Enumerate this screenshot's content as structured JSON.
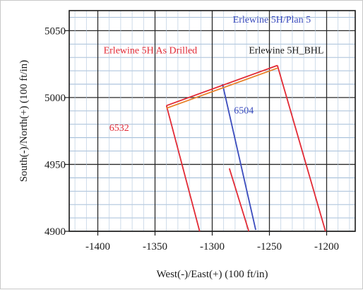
{
  "chart_data": {
    "type": "line",
    "title": "",
    "xlabel": "West(-)/East(+) (100 ft/in)",
    "ylabel": "South(-)/North(+) (100 ft/in)",
    "xlim": [
      -1425,
      -1175
    ],
    "ylim": [
      4900,
      5065
    ],
    "x_ticks": [
      -1400,
      -1350,
      -1300,
      -1250,
      -1200
    ],
    "x_tick_labels": [
      "-1400",
      "-1350",
      "-1300",
      "-1250",
      "-1200"
    ],
    "y_ticks": [
      4900,
      4950,
      5000,
      5050
    ],
    "y_tick_labels": [
      "4900",
      "4950",
      "5000",
      "5050"
    ],
    "grid": true,
    "legend": "none",
    "series": [
      {
        "name": "Erlewine 5H/Plan 5",
        "color": "#3a4bbd",
        "x": [
          -1291,
          -1262
        ],
        "y": [
          5010,
          4901
        ]
      },
      {
        "name": "Erlewine 5H_BHL",
        "color": "#e22a35",
        "x": [
          -1243,
          -1201
        ],
        "y": [
          5024,
          4900
        ]
      },
      {
        "name": "Erlewine 5H_BHL",
        "color": "#e22a35",
        "x": [
          -1340,
          -1311
        ],
        "y": [
          4994,
          4900
        ]
      },
      {
        "name": "Erlewine 5H As Drilled",
        "color": "#e22a35",
        "x": [
          -1285,
          -1268
        ],
        "y": [
          4947,
          4900
        ]
      },
      {
        "name": "Erlewine 5H_BHL",
        "color": "#e22a35",
        "x": [
          -1340,
          -1243
        ],
        "y": [
          4994,
          5024
        ]
      },
      {
        "name": "Erlewine 5H As Drilled",
        "color": "#e8822a",
        "x": [
          -1340,
          -1243
        ],
        "y": [
          4992,
          5022
        ]
      }
    ],
    "annotations": [
      {
        "text": "Erlewine 5H/Plan 5",
        "color": "#3a4bbd",
        "x": -1282,
        "y": 5056
      },
      {
        "text": "Erlewine 5H_BHL",
        "color": "#1a1a1a",
        "x": -1268,
        "y": 5033
      },
      {
        "text": "Erlewine 5H As Drilled",
        "color": "#e22a35",
        "x": -1395,
        "y": 5033
      },
      {
        "text": "6504",
        "color": "#3a4bbd",
        "x": -1281,
        "y": 4988
      },
      {
        "text": "6532",
        "color": "#e22a35",
        "x": -1390,
        "y": 4975
      }
    ]
  }
}
